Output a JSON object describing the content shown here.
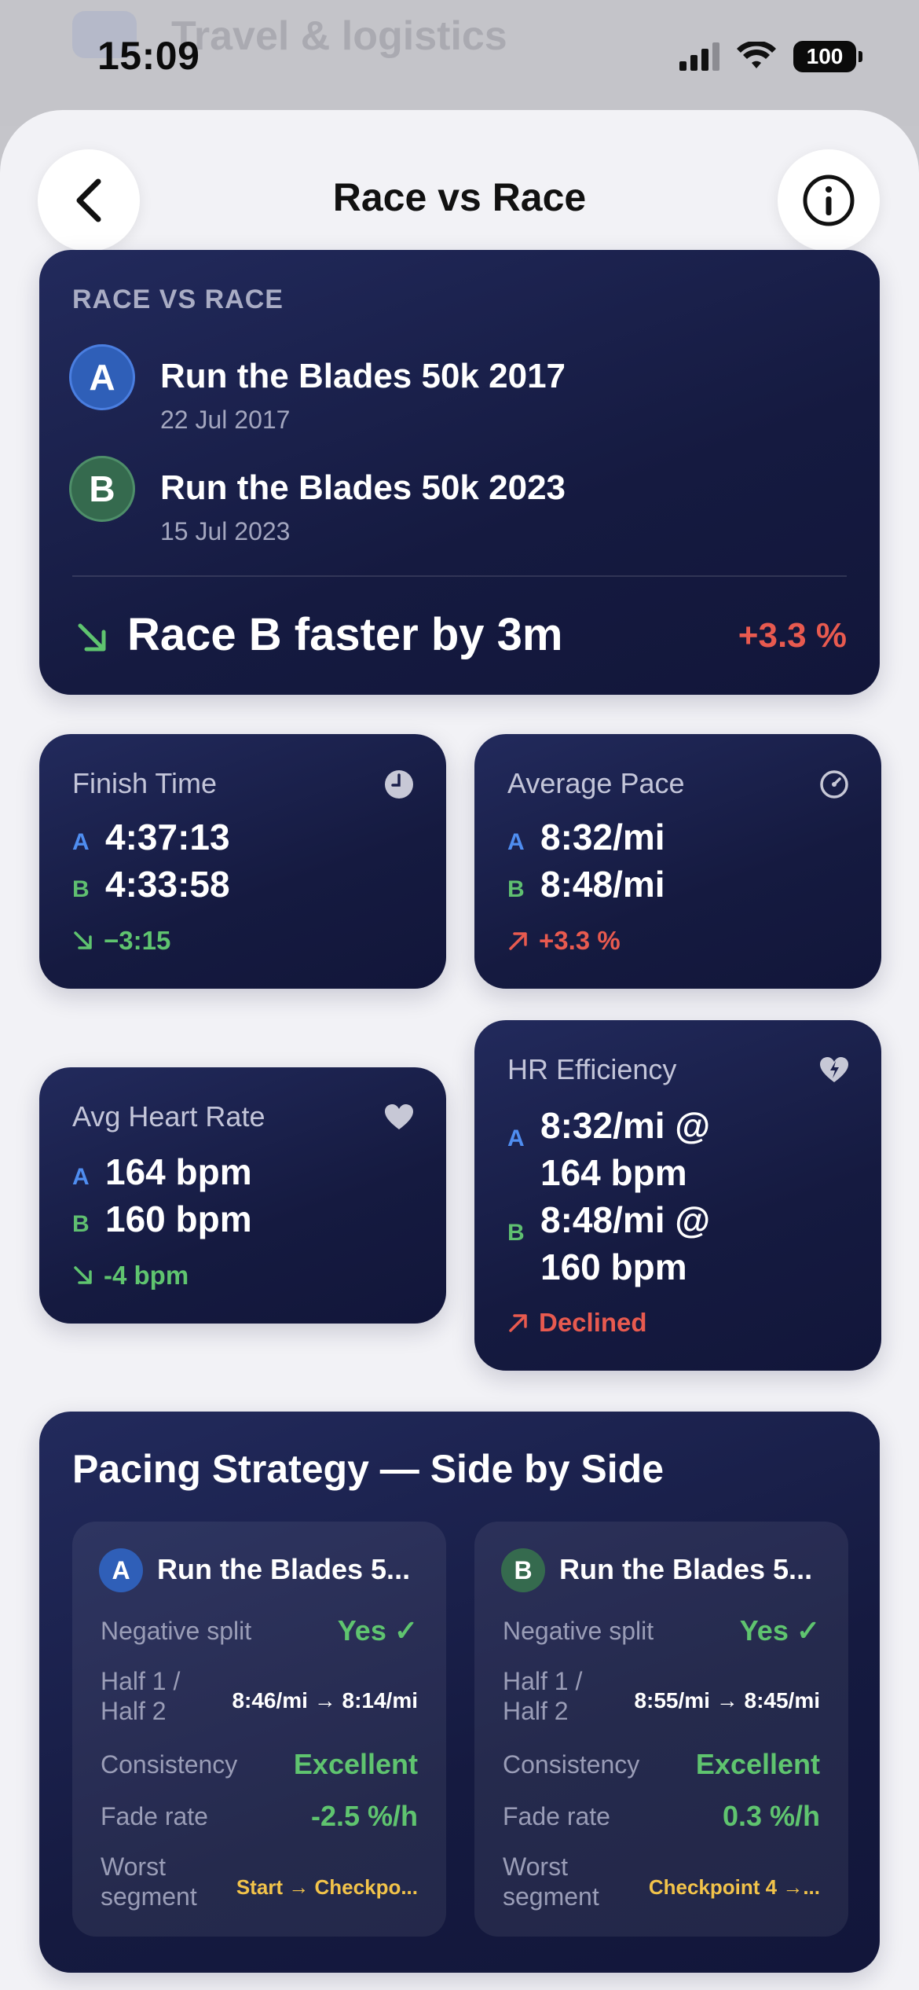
{
  "status_bar": {
    "time": "15:09",
    "battery": "100"
  },
  "background_app": {
    "title": "Travel & logistics"
  },
  "nav": {
    "title": "Race vs Race"
  },
  "hero": {
    "label": "RACE VS RACE",
    "race_a": {
      "letter": "A",
      "name": "Run the Blades 50k 2017",
      "date": "22 Jul 2017"
    },
    "race_b": {
      "letter": "B",
      "name": "Run the Blades 50k 2023",
      "date": "15 Jul 2023"
    },
    "summary": "Race B faster by 3m",
    "pct": "+3.3 %"
  },
  "metrics": {
    "finish_time": {
      "title": "Finish Time",
      "a": "4:37:13",
      "b": "4:33:58",
      "delta": "−3:15"
    },
    "average_pace": {
      "title": "Average Pace",
      "a": "8:32/mi",
      "b": "8:48/mi",
      "delta": "+3.3 %"
    },
    "avg_heart_rate": {
      "title": "Avg Heart Rate",
      "a": "164 bpm",
      "b": "160 bpm",
      "delta": "-4 bpm"
    },
    "hr_efficiency": {
      "title": "HR Efficiency",
      "a_line1": "8:32/mi @",
      "a_line2": "164 bpm",
      "b_line1": "8:48/mi @",
      "b_line2": "160 bpm",
      "delta": "Declined"
    }
  },
  "labels": {
    "a": "A",
    "b": "B"
  },
  "pacing": {
    "title": "Pacing Strategy — Side by Side",
    "row_labels": {
      "negative_split": "Negative split",
      "half_line1": "Half 1 /",
      "half_line2": "Half 2",
      "consistency": "Consistency",
      "fade_rate": "Fade rate",
      "worst_line1": "Worst",
      "worst_line2": "segment"
    },
    "a": {
      "name": "Run the Blades 5...",
      "negative_split": "Yes ✓",
      "halves": "8:46/mi → 8:14/mi",
      "consistency": "Excellent",
      "fade_rate": "-2.5 %/h",
      "worst_segment": "Start → Checkpo..."
    },
    "b": {
      "name": "Run the Blades 5...",
      "negative_split": "Yes ✓",
      "halves": "8:55/mi → 8:45/mi",
      "consistency": "Excellent",
      "fade_rate": "0.3 %/h",
      "worst_segment": "Checkpoint 4 →..."
    }
  },
  "colors": {
    "card": "#1a1f4b",
    "accent_a": "#4f8df0",
    "accent_b": "#5fbf70",
    "positive": "#5fc46f",
    "negative": "#e85a4f",
    "highlight": "#f2c34a"
  }
}
